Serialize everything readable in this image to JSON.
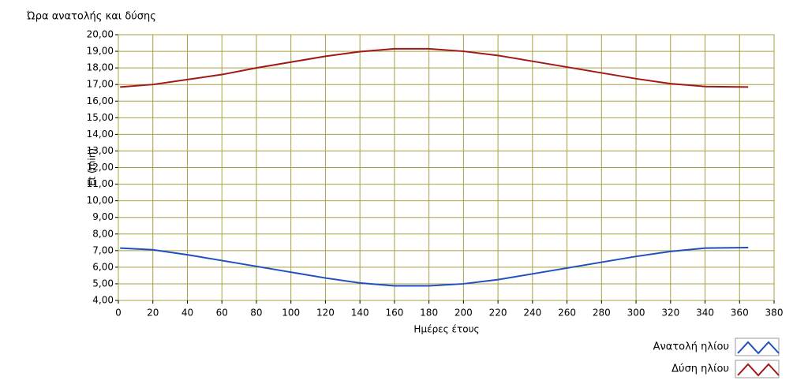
{
  "chart_data": {
    "type": "line",
    "title": "Ώρα ανατολής και δύσης",
    "xlabel": "Ημέρες έτους",
    "ylabel": "Et (min)",
    "x": [
      1,
      20,
      40,
      60,
      80,
      100,
      120,
      140,
      160,
      180,
      200,
      220,
      240,
      260,
      280,
      300,
      320,
      340,
      365
    ],
    "series": [
      {
        "name": "Ανατολή ηλίου",
        "color": "#1f4fbf",
        "values": [
          7.15,
          7.05,
          6.75,
          6.4,
          6.05,
          5.7,
          5.35,
          5.05,
          4.88,
          4.88,
          5.0,
          5.25,
          5.6,
          5.95,
          6.3,
          6.65,
          6.95,
          7.15,
          7.18
        ]
      },
      {
        "name": "Δύση ηλίου",
        "color": "#a01818",
        "values": [
          16.85,
          17.0,
          17.3,
          17.6,
          18.0,
          18.35,
          18.7,
          18.98,
          19.15,
          19.15,
          19.0,
          18.75,
          18.4,
          18.05,
          17.7,
          17.35,
          17.05,
          16.88,
          16.85
        ]
      }
    ],
    "xlim": [
      0,
      380
    ],
    "xticks": [
      0,
      20,
      40,
      60,
      80,
      100,
      120,
      140,
      160,
      180,
      200,
      220,
      240,
      260,
      280,
      300,
      320,
      340,
      360,
      380
    ],
    "ylim": [
      4,
      20
    ],
    "yticks": [
      {
        "value": 4,
        "label": "4,00"
      },
      {
        "value": 5,
        "label": "5,00"
      },
      {
        "value": 6,
        "label": "6,00"
      },
      {
        "value": 7,
        "label": "7,00"
      },
      {
        "value": 8,
        "label": "8,00"
      },
      {
        "value": 9,
        "label": "9,00"
      },
      {
        "value": 10,
        "label": "10,00"
      },
      {
        "value": 11,
        "label": "11,00"
      },
      {
        "value": 12,
        "label": "12,00"
      },
      {
        "value": 13,
        "label": "13,00"
      },
      {
        "value": 14,
        "label": "14,00"
      },
      {
        "value": 15,
        "label": "15,00"
      },
      {
        "value": 16,
        "label": "16,00"
      },
      {
        "value": 17,
        "label": "17,00"
      },
      {
        "value": 18,
        "label": "18,00"
      },
      {
        "value": 19,
        "label": "19,00"
      },
      {
        "value": 20,
        "label": "20,00"
      }
    ],
    "grid": true
  }
}
